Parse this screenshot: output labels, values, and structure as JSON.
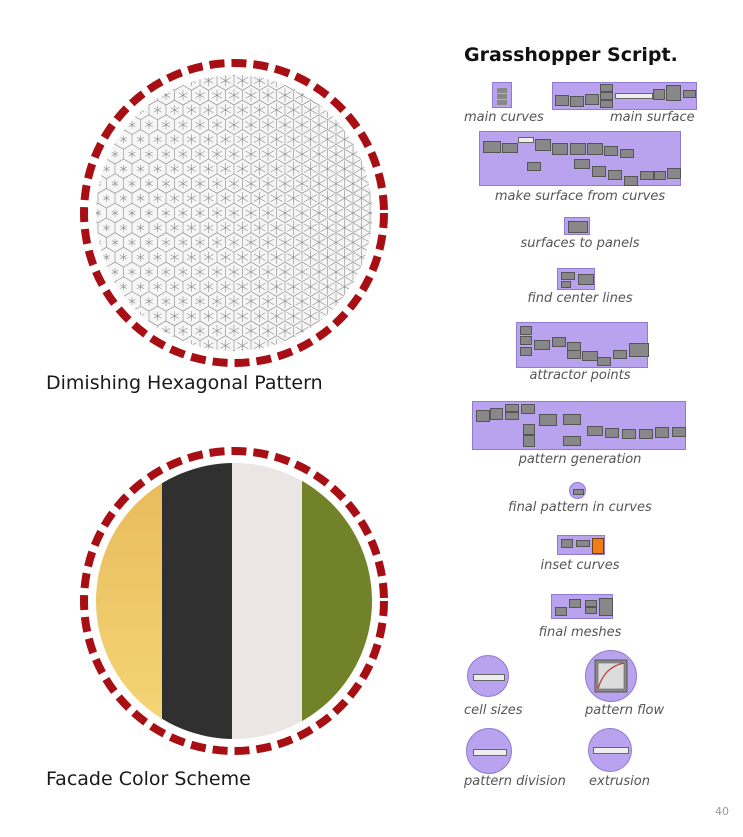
{
  "pattern_section": {
    "title": "Dimishing Hexagonal Pattern"
  },
  "color_section": {
    "title": "Facade Color Scheme",
    "swatches": [
      {
        "name": "gold",
        "color": "#eecb62"
      },
      {
        "name": "charcoal",
        "color": "#303030"
      },
      {
        "name": "off-white",
        "color": "#ebe6e3"
      },
      {
        "name": "olive",
        "color": "#718228"
      }
    ]
  },
  "colors": {
    "ring": "#a80f14",
    "panel": "#b9a3ee",
    "component": "#8b8b8b",
    "accent": "#f07d16"
  },
  "script": {
    "title": "Grasshopper Script.",
    "steps": {
      "main_curves": "main curves",
      "main_surface": "main surface",
      "make_surface": "make surface from curves",
      "surfaces_to_panels": "surfaces to panels",
      "find_center_lines": "find center lines",
      "attractor_points": "attractor points",
      "pattern_generation": "pattern generation",
      "final_pattern": "final pattern in curves",
      "inset_curves": "inset curves",
      "final_meshes": "final meshes",
      "cell_sizes": "cell sizes",
      "pattern_flow": "pattern flow",
      "pattern_division": "pattern division",
      "extrusion": "extrusion"
    }
  },
  "page_number": "40"
}
